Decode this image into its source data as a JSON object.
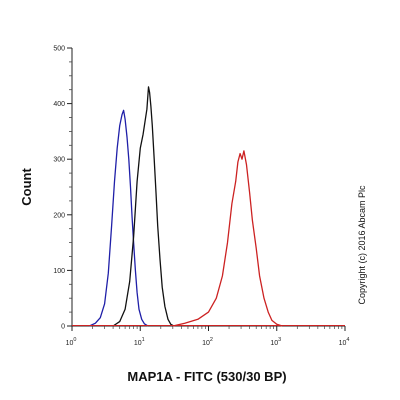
{
  "chart_data": {
    "type": "line",
    "title": "",
    "xlabel": "MAP1A - FITC (530/30 BP)",
    "ylabel": "Count",
    "x_scale": "log",
    "xlim": [
      1,
      10000
    ],
    "ylim": [
      0,
      500
    ],
    "x_ticks": [
      {
        "value": 1,
        "base": "10",
        "exp": "0"
      },
      {
        "value": 10,
        "base": "10",
        "exp": "1"
      },
      {
        "value": 100,
        "base": "10",
        "exp": "2"
      },
      {
        "value": 1000,
        "base": "10",
        "exp": "3"
      },
      {
        "value": 10000,
        "base": "10",
        "exp": "4"
      }
    ],
    "y_ticks": [
      0,
      100,
      200,
      300,
      400,
      500
    ],
    "grid": false,
    "legend": "none",
    "annotation": "Copyright (c) 2016 Abcam Plc",
    "series": [
      {
        "color": "#1f1fa8",
        "x": [
          1.8,
          2.2,
          2.6,
          3.0,
          3.4,
          3.8,
          4.2,
          4.6,
          5.0,
          5.4,
          5.7,
          6.0,
          6.4,
          6.8,
          7.2,
          7.6,
          8.0,
          8.5,
          9.0,
          9.6,
          10.5,
          11.5,
          13.0
        ],
        "y": [
          0,
          5,
          15,
          40,
          95,
          180,
          260,
          320,
          360,
          380,
          388,
          372,
          340,
          300,
          250,
          195,
          150,
          100,
          60,
          30,
          12,
          4,
          0
        ]
      },
      {
        "color": "#111111",
        "x": [
          4.0,
          5.0,
          6.0,
          7.0,
          8.0,
          9.0,
          10.0,
          11.0,
          11.8,
          12.5,
          13.2,
          13.7,
          14.3,
          15.0,
          16.0,
          17.0,
          18.0,
          19.5,
          21.0,
          23.0,
          25.5,
          28.0,
          31.0
        ],
        "y": [
          0,
          8,
          30,
          80,
          160,
          260,
          320,
          345,
          370,
          390,
          430,
          420,
          395,
          360,
          300,
          240,
          180,
          120,
          70,
          35,
          12,
          3,
          0
        ]
      },
      {
        "color": "#cc2222",
        "x": [
          30,
          45,
          70,
          100,
          130,
          160,
          190,
          220,
          250,
          270,
          290,
          310,
          330,
          360,
          400,
          440,
          500,
          560,
          650,
          750,
          850,
          1000,
          1200
        ],
        "y": [
          0,
          5,
          12,
          25,
          50,
          90,
          150,
          220,
          260,
          295,
          310,
          300,
          315,
          290,
          240,
          190,
          140,
          90,
          50,
          25,
          10,
          3,
          0
        ]
      }
    ]
  }
}
